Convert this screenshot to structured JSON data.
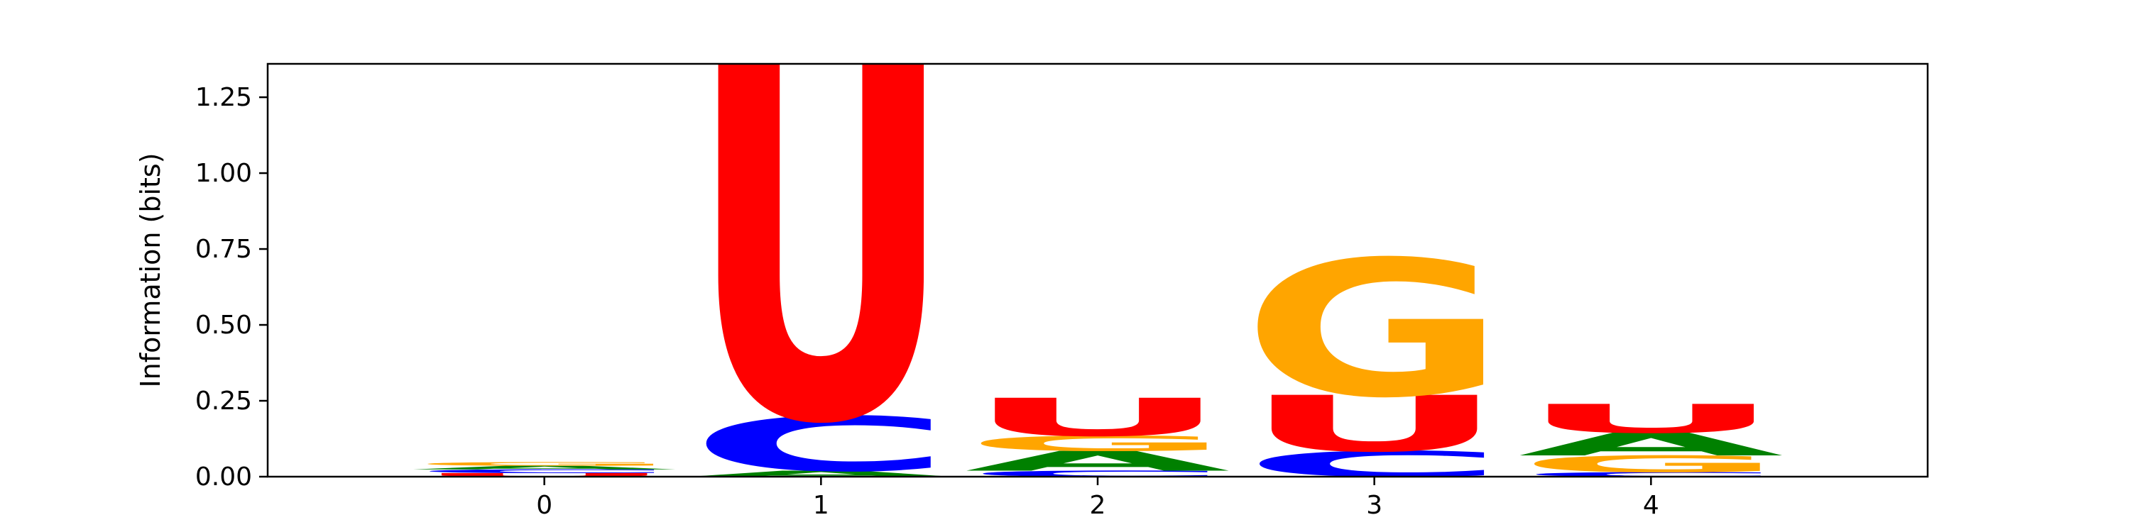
{
  "chart_data": {
    "type": "sequence-logo",
    "title": "",
    "xlabel": "",
    "ylabel": "Information (bits)",
    "positions": [
      0,
      1,
      2,
      3,
      4
    ],
    "xlim": [
      -1,
      5
    ],
    "ylim": [
      0,
      1.36
    ],
    "yticks": [
      "0.00",
      "0.25",
      "0.50",
      "0.75",
      "1.00",
      "1.25"
    ],
    "ytick_values": [
      0,
      0.25,
      0.5,
      0.75,
      1.0,
      1.25
    ],
    "xticks": [
      "0",
      "1",
      "2",
      "3",
      "4"
    ],
    "letter_colors": {
      "A": "#008000",
      "C": "#0000ff",
      "G": "#ffa500",
      "U": "#ff0000"
    },
    "columns": [
      {
        "position": 0,
        "letters": [
          {
            "base": "U",
            "bits": 0.012
          },
          {
            "base": "C",
            "bits": 0.012
          },
          {
            "base": "A",
            "bits": 0.012
          },
          {
            "base": "G",
            "bits": 0.012
          }
        ]
      },
      {
        "position": 1,
        "letters": [
          {
            "base": "A",
            "bits": 0.02
          },
          {
            "base": "C",
            "bits": 0.18
          },
          {
            "base": "U",
            "bits": 1.16
          }
        ]
      },
      {
        "position": 2,
        "letters": [
          {
            "base": "C",
            "bits": 0.02
          },
          {
            "base": "A",
            "bits": 0.065
          },
          {
            "base": "G",
            "bits": 0.05
          },
          {
            "base": "U",
            "bits": 0.125
          }
        ]
      },
      {
        "position": 3,
        "letters": [
          {
            "base": "C",
            "bits": 0.085
          },
          {
            "base": "U",
            "bits": 0.185
          },
          {
            "base": "G",
            "bits": 0.45
          }
        ]
      },
      {
        "position": 4,
        "letters": [
          {
            "base": "C",
            "bits": 0.015
          },
          {
            "base": "G",
            "bits": 0.055
          },
          {
            "base": "A",
            "bits": 0.075
          },
          {
            "base": "U",
            "bits": 0.095
          }
        ]
      }
    ]
  }
}
